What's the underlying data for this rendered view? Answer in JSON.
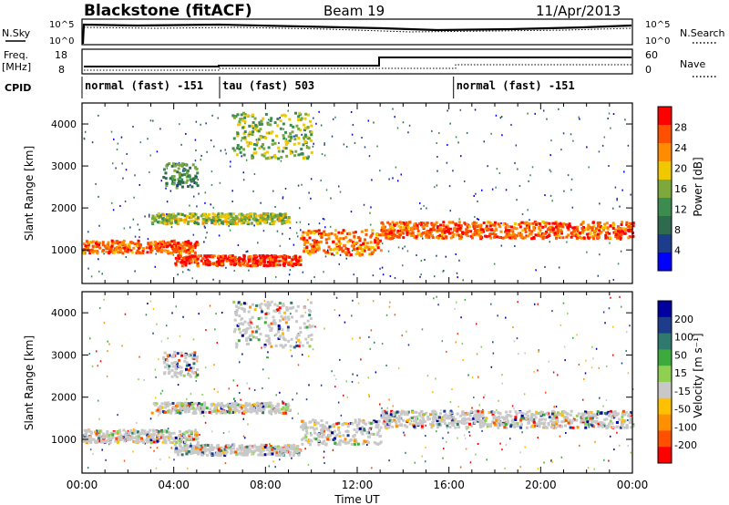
{
  "header": {
    "station": "Blackstone (fitACF)",
    "beam": "Beam 19",
    "date": "11/Apr/2013"
  },
  "summary": {
    "nsky_label": "N.Sky",
    "nsearch_label": "N.Search",
    "freq_label_1": "Freq.",
    "freq_label_2": "[MHz]",
    "nave_label": "Nave",
    "cpid_label": "CPID",
    "nsky_ticks": [
      "10^5",
      "10^0"
    ],
    "nsearch_ticks": [
      "10^5",
      "10^0"
    ],
    "freq_ticks": [
      "18",
      "8"
    ],
    "nave_ticks": [
      "60",
      "0"
    ],
    "cpid_segments": [
      {
        "label": "normal (fast) -151",
        "start": 0,
        "end": 6
      },
      {
        "label": "tau (fast) 503",
        "start": 6,
        "end": 16.2
      },
      {
        "label": "normal (fast) -151",
        "start": 16.2,
        "end": 24
      }
    ]
  },
  "colors": {
    "power": [
      "#0000ff",
      "#1e3c8c",
      "#2e6b4e",
      "#3c8c50",
      "#7ca83c",
      "#f0c800",
      "#ff8c00",
      "#ff5000",
      "#ff0000"
    ],
    "velocity": [
      "#0000a0",
      "#1e3c8c",
      "#2e7a6e",
      "#3caa3c",
      "#90d050",
      "#c8c8c8",
      "#ffc000",
      "#ff9000",
      "#ff5000",
      "#ff0000"
    ]
  },
  "chart_data": [
    {
      "type": "heatmap",
      "name": "power",
      "title": "",
      "xlabel": "",
      "ylabel": "Slant Range [km]",
      "xlim": [
        0,
        24
      ],
      "ylim": [
        200,
        4500
      ],
      "ytick_values": [
        1000,
        2000,
        3000,
        4000
      ],
      "ytick_labels": [
        "1000",
        "2000",
        "3000",
        "4000"
      ],
      "colorbar_label": "Power [dB]",
      "colorbar_range": [
        0,
        32
      ],
      "colorbar_ticks": [
        "4",
        "8",
        "12",
        "16",
        "20",
        "24",
        "28"
      ],
      "features": [
        {
          "t0": 0,
          "t1": 5,
          "r0": 950,
          "r1": 1250,
          "level": 0.85
        },
        {
          "t0": 3,
          "t1": 9,
          "r0": 1650,
          "r1": 1900,
          "level": 0.55
        },
        {
          "t0": 4,
          "t1": 9.5,
          "r0": 650,
          "r1": 900,
          "level": 0.95
        },
        {
          "t0": 9.5,
          "t1": 13,
          "r0": 900,
          "r1": 1500,
          "level": 0.8
        },
        {
          "t0": 13,
          "t1": 24,
          "r0": 1300,
          "r1": 1700,
          "level": 0.85
        },
        {
          "t0": 3.5,
          "t1": 5,
          "r0": 2500,
          "r1": 3100,
          "level": 0.35
        },
        {
          "t0": 6.5,
          "t1": 10,
          "r0": 3200,
          "r1": 4300,
          "level": 0.5
        }
      ]
    },
    {
      "type": "heatmap",
      "name": "velocity",
      "title": "",
      "xlabel": "Time UT",
      "ylabel": "Slant Range [km]",
      "xlim": [
        0,
        24
      ],
      "ylim": [
        200,
        4500
      ],
      "ytick_values": [
        1000,
        2000,
        3000,
        4000
      ],
      "ytick_labels": [
        "1000",
        "2000",
        "3000",
        "4000"
      ],
      "xtick_values": [
        0,
        4,
        8,
        12,
        16,
        20,
        24
      ],
      "xtick_labels": [
        "00:00",
        "04:00",
        "08:00",
        "12:00",
        "16:00",
        "20:00",
        "00:00"
      ],
      "colorbar_label": "Velocity [m s⁻¹]",
      "colorbar_ticks": [
        "200",
        "100",
        "50",
        "15",
        "-15",
        "-50",
        "-100",
        "-200"
      ]
    }
  ]
}
